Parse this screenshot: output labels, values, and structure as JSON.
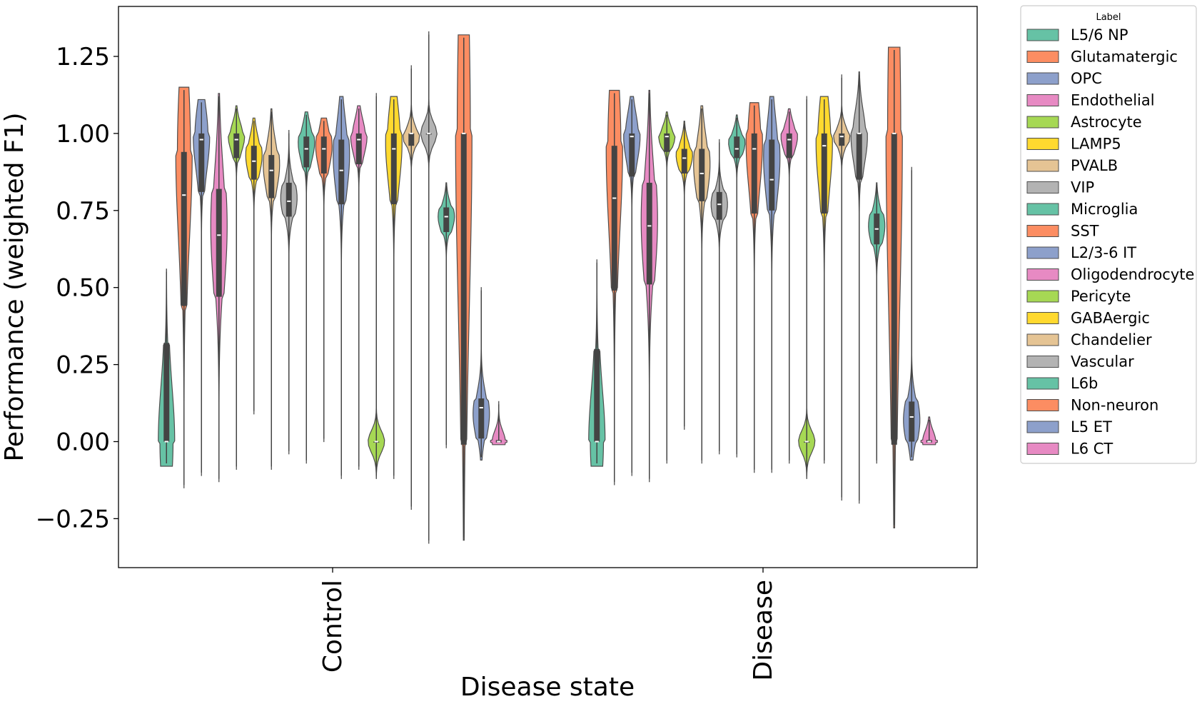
{
  "chart_data": {
    "type": "violin",
    "xlabel": "Disease state",
    "ylabel": "Performance (weighted F1)",
    "categories": [
      "Control",
      "Disease"
    ],
    "ylim": [
      -0.4,
      1.42
    ],
    "yticks": [
      {
        "value": -0.25,
        "label": "−0.25"
      },
      {
        "value": 0.0,
        "label": "0.00"
      },
      {
        "value": 0.25,
        "label": "0.25"
      },
      {
        "value": 0.5,
        "label": "0.50"
      },
      {
        "value": 0.75,
        "label": "0.75"
      },
      {
        "value": 1.0,
        "label": "1.00"
      },
      {
        "value": 1.25,
        "label": "1.25"
      }
    ],
    "grid": false,
    "legend": {
      "title": "Label",
      "placement": "outside-right"
    },
    "series": [
      {
        "name": "L5/6 NP",
        "color": "#66c2a5",
        "groups": [
          {
            "min": -0.08,
            "max": 0.56,
            "q1": 0.0,
            "median": 0.0,
            "q3": 0.32,
            "peak": 0.0
          },
          {
            "min": -0.08,
            "max": 0.59,
            "q1": 0.0,
            "median": 0.0,
            "q3": 0.3,
            "peak": 0.0
          }
        ]
      },
      {
        "name": "Glutamatergic",
        "color": "#fc8d62",
        "groups": [
          {
            "min": -0.15,
            "max": 1.15,
            "q1": 0.44,
            "median": 0.8,
            "q3": 0.94,
            "peak": 0.94
          },
          {
            "min": -0.14,
            "max": 1.14,
            "q1": 0.49,
            "median": 0.79,
            "q3": 0.96,
            "peak": 0.95
          }
        ]
      },
      {
        "name": "OPC",
        "color": "#8da0cb",
        "groups": [
          {
            "min": -0.11,
            "max": 1.11,
            "q1": 0.81,
            "median": 0.98,
            "q3": 1.0,
            "peak": 0.99
          },
          {
            "min": -0.11,
            "max": 1.12,
            "q1": 0.86,
            "median": 0.99,
            "q3": 1.0,
            "peak": 0.99
          }
        ]
      },
      {
        "name": "Endothelial",
        "color": "#e78ac3",
        "groups": [
          {
            "min": -0.13,
            "max": 1.13,
            "q1": 0.47,
            "median": 0.67,
            "q3": 0.82,
            "peak": 0.7
          },
          {
            "min": -0.13,
            "max": 1.14,
            "q1": 0.51,
            "median": 0.7,
            "q3": 0.84,
            "peak": 0.72
          }
        ]
      },
      {
        "name": "Astrocyte",
        "color": "#a6d854",
        "groups": [
          {
            "min": -0.09,
            "max": 1.09,
            "q1": 0.92,
            "median": 0.98,
            "q3": 1.0,
            "peak": 0.99
          },
          {
            "min": -0.07,
            "max": 1.07,
            "q1": 0.94,
            "median": 0.99,
            "q3": 1.0,
            "peak": 0.99
          }
        ]
      },
      {
        "name": "LAMP5",
        "color": "#ffd92f",
        "groups": [
          {
            "min": 0.09,
            "max": 1.05,
            "q1": 0.85,
            "median": 0.91,
            "q3": 0.96,
            "peak": 0.93
          },
          {
            "min": 0.04,
            "max": 1.04,
            "q1": 0.87,
            "median": 0.92,
            "q3": 0.95,
            "peak": 0.93
          }
        ]
      },
      {
        "name": "PVALB",
        "color": "#e5c494",
        "groups": [
          {
            "min": -0.09,
            "max": 1.08,
            "q1": 0.79,
            "median": 0.88,
            "q3": 0.93,
            "peak": 0.9
          },
          {
            "min": -0.07,
            "max": 1.09,
            "q1": 0.78,
            "median": 0.87,
            "q3": 0.95,
            "peak": 0.9
          }
        ]
      },
      {
        "name": "VIP",
        "color": "#b3b3b3",
        "groups": [
          {
            "min": -0.04,
            "max": 1.01,
            "q1": 0.73,
            "median": 0.78,
            "q3": 0.84,
            "peak": 0.79
          },
          {
            "min": -0.04,
            "max": 0.98,
            "q1": 0.72,
            "median": 0.77,
            "q3": 0.81,
            "peak": 0.77
          }
        ]
      },
      {
        "name": "Microglia",
        "color": "#66c2a5",
        "groups": [
          {
            "min": -0.07,
            "max": 1.07,
            "q1": 0.89,
            "median": 0.95,
            "q3": 0.99,
            "peak": 0.97
          },
          {
            "min": -0.05,
            "max": 1.06,
            "q1": 0.92,
            "median": 0.95,
            "q3": 0.99,
            "peak": 0.97
          }
        ]
      },
      {
        "name": "SST",
        "color": "#fc8d62",
        "groups": [
          {
            "min": 0.0,
            "max": 1.05,
            "q1": 0.87,
            "median": 0.95,
            "q3": 0.99,
            "peak": 0.96
          },
          {
            "min": -0.1,
            "max": 1.1,
            "q1": 0.74,
            "median": 0.95,
            "q3": 1.0,
            "peak": 0.97
          }
        ]
      },
      {
        "name": "L2/3-6 IT",
        "color": "#8da0cb",
        "groups": [
          {
            "min": -0.12,
            "max": 1.12,
            "q1": 0.77,
            "median": 0.88,
            "q3": 0.98,
            "peak": 0.93
          },
          {
            "min": -0.1,
            "max": 1.12,
            "q1": 0.75,
            "median": 0.85,
            "q3": 0.98,
            "peak": 0.92
          }
        ]
      },
      {
        "name": "Oligodendrocyte",
        "color": "#e78ac3",
        "groups": [
          {
            "min": -0.09,
            "max": 1.09,
            "q1": 0.9,
            "median": 0.98,
            "q3": 1.0,
            "peak": 0.99
          },
          {
            "min": -0.07,
            "max": 1.08,
            "q1": 0.92,
            "median": 0.98,
            "q3": 1.0,
            "peak": 0.99
          }
        ]
      },
      {
        "name": "Pericyte",
        "color": "#a6d854",
        "groups": [
          {
            "min": -0.12,
            "max": 1.13,
            "q1": 0.0,
            "median": 0.0,
            "q3": 0.0,
            "peak": 0.0
          },
          {
            "min": -0.12,
            "max": 1.12,
            "q1": 0.0,
            "median": 0.0,
            "q3": 0.0,
            "peak": 0.0
          }
        ]
      },
      {
        "name": "GABAergic",
        "color": "#ffd92f",
        "groups": [
          {
            "min": -0.12,
            "max": 1.12,
            "q1": 0.77,
            "median": 0.95,
            "q3": 1.0,
            "peak": 0.97
          },
          {
            "min": -0.07,
            "max": 1.12,
            "q1": 0.74,
            "median": 0.96,
            "q3": 1.0,
            "peak": 0.97
          }
        ]
      },
      {
        "name": "Chandelier",
        "color": "#e5c494",
        "groups": [
          {
            "min": -0.22,
            "max": 1.22,
            "q1": 0.96,
            "median": 1.0,
            "q3": 1.0,
            "peak": 0.99
          },
          {
            "min": -0.19,
            "max": 1.19,
            "q1": 0.96,
            "median": 0.99,
            "q3": 1.0,
            "peak": 0.99
          }
        ]
      },
      {
        "name": "Vascular",
        "color": "#b3b3b3",
        "groups": [
          {
            "min": -0.33,
            "max": 1.33,
            "q1": 1.0,
            "median": 1.0,
            "q3": 1.0,
            "peak": 1.0
          },
          {
            "min": -0.2,
            "max": 1.2,
            "q1": 0.85,
            "median": 1.0,
            "q3": 1.0,
            "peak": 0.99
          }
        ]
      },
      {
        "name": "L6b",
        "color": "#66c2a5",
        "groups": [
          {
            "min": -0.02,
            "max": 0.84,
            "q1": 0.68,
            "median": 0.73,
            "q3": 0.76,
            "peak": 0.73
          },
          {
            "min": -0.07,
            "max": 0.84,
            "q1": 0.64,
            "median": 0.69,
            "q3": 0.74,
            "peak": 0.7
          }
        ]
      },
      {
        "name": "Non-neuron",
        "color": "#fc8d62",
        "groups": [
          {
            "min": -0.32,
            "max": 1.32,
            "q1": -0.01,
            "median": 1.0,
            "q3": 1.0,
            "peak": 1.0
          },
          {
            "min": -0.28,
            "max": 1.28,
            "q1": -0.01,
            "median": 1.0,
            "q3": 1.0,
            "peak": 1.0
          }
        ]
      },
      {
        "name": "L5 ET",
        "color": "#8da0cb",
        "groups": [
          {
            "min": -0.06,
            "max": 0.5,
            "q1": 0.01,
            "median": 0.11,
            "q3": 0.14,
            "peak": 0.09
          },
          {
            "min": -0.06,
            "max": 0.89,
            "q1": 0.0,
            "median": 0.08,
            "q3": 0.13,
            "peak": 0.07
          }
        ]
      },
      {
        "name": "L6 CT",
        "color": "#e78ac3",
        "groups": [
          {
            "min": -0.01,
            "max": 0.13,
            "q1": -0.003,
            "median": 0.0,
            "q3": 0.005,
            "peak": 0.0
          },
          {
            "min": -0.01,
            "max": 0.08,
            "q1": -0.003,
            "median": 0.0,
            "q3": 0.005,
            "peak": 0.0
          }
        ]
      }
    ]
  }
}
